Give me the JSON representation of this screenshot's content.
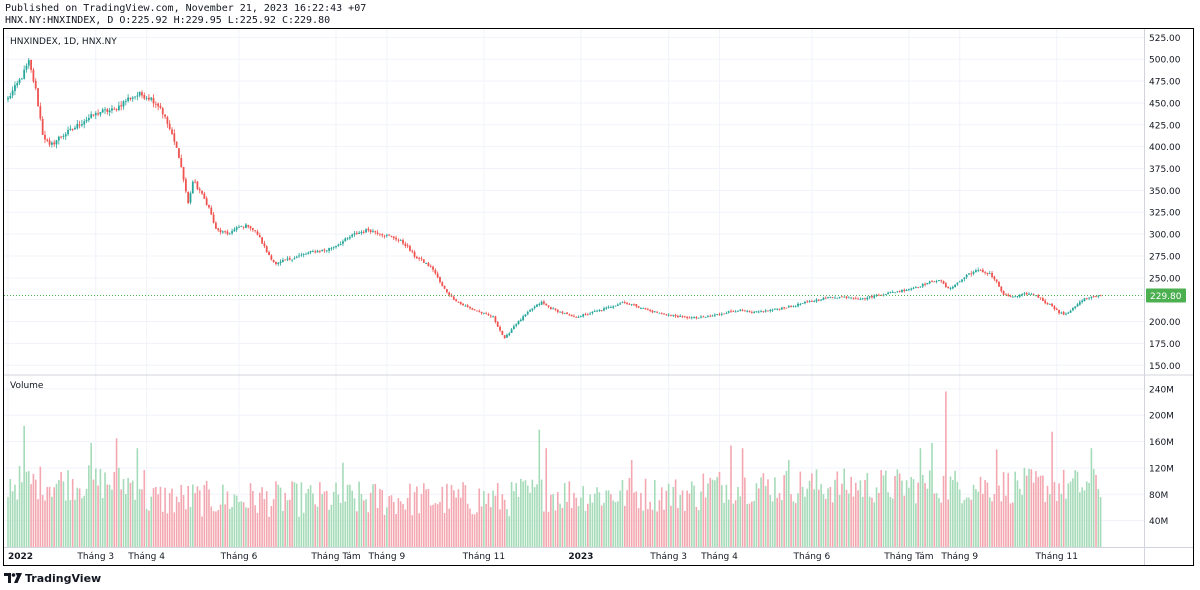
{
  "header": {
    "published": "Published on TradingView.com, November 21, 2023 16:22:43 +07",
    "ohlc": "HNX.NY:HNXINDEX, D O:225.92 H:229.95 L:225.92 C:229.80"
  },
  "footer": {
    "brand": "TradingView",
    "logo_icon": "tradingview-logo-icon"
  },
  "colors": {
    "up": "#26a69a",
    "down": "#ef5350",
    "up_vol": "#a5dbb8",
    "down_vol": "#f3a7b0",
    "grid": "#f0f3fa",
    "last_price": "#4caf50"
  },
  "chart_data": {
    "type": "candlestick",
    "title": "HNXINDEX, 1D, HNX.NY",
    "symbol": "HNX.NY:HNXINDEX",
    "interval": "1D",
    "last_price": "229.80",
    "price_axis": {
      "ylim": [
        140,
        530
      ],
      "ticks": [
        525,
        500,
        475,
        450,
        425,
        400,
        375,
        350,
        325,
        300,
        275,
        250,
        225,
        200,
        175,
        150
      ],
      "tick_labels": [
        "525.00",
        "500.00",
        "475.00",
        "450.00",
        "425.00",
        "400.00",
        "375.00",
        "350.00",
        "325.00",
        "300.00",
        "275.00",
        "250.00",
        "225.00",
        "200.00",
        "175.00",
        "150.00"
      ]
    },
    "volume_axis": {
      "title": "Volume",
      "ylim": [
        0,
        255
      ],
      "ticks": [
        240,
        200,
        160,
        120,
        80,
        40
      ],
      "tick_labels": [
        "240M",
        "200M",
        "160M",
        "120M",
        "80M",
        "40M"
      ]
    },
    "time_axis": [
      {
        "label": "2022",
        "index": 0,
        "bold": true
      },
      {
        "label": "Tháng 3",
        "index": 38
      },
      {
        "label": "Tháng 4",
        "index": 60
      },
      {
        "label": "Tháng 6",
        "index": 100
      },
      {
        "label": "Tháng Tám",
        "index": 142
      },
      {
        "label": "Tháng 9",
        "index": 164
      },
      {
        "label": "Tháng 11",
        "index": 206
      },
      {
        "label": "2023",
        "index": 248,
        "bold": true
      },
      {
        "label": "Tháng 3",
        "index": 286
      },
      {
        "label": "Tháng 4",
        "index": 308
      },
      {
        "label": "Tháng 6",
        "index": 348
      },
      {
        "label": "Tháng Tám",
        "index": 390
      },
      {
        "label": "Tháng 9",
        "index": 412
      },
      {
        "label": "Tháng 11",
        "index": 454
      }
    ],
    "bars": 474,
    "close_keypoints": [
      [
        0,
        455
      ],
      [
        6,
        480
      ],
      [
        9,
        497
      ],
      [
        12,
        465
      ],
      [
        15,
        415
      ],
      [
        18,
        400
      ],
      [
        22,
        410
      ],
      [
        28,
        420
      ],
      [
        33,
        430
      ],
      [
        40,
        440
      ],
      [
        46,
        442
      ],
      [
        52,
        455
      ],
      [
        57,
        460
      ],
      [
        62,
        455
      ],
      [
        66,
        445
      ],
      [
        70,
        420
      ],
      [
        74,
        390
      ],
      [
        78,
        335
      ],
      [
        80,
        360
      ],
      [
        83,
        350
      ],
      [
        87,
        330
      ],
      [
        90,
        305
      ],
      [
        95,
        300
      ],
      [
        100,
        308
      ],
      [
        104,
        310
      ],
      [
        108,
        300
      ],
      [
        112,
        280
      ],
      [
        116,
        265
      ],
      [
        120,
        270
      ],
      [
        126,
        275
      ],
      [
        132,
        280
      ],
      [
        138,
        282
      ],
      [
        144,
        290
      ],
      [
        150,
        300
      ],
      [
        156,
        305
      ],
      [
        162,
        300
      ],
      [
        168,
        295
      ],
      [
        172,
        288
      ],
      [
        176,
        275
      ],
      [
        180,
        268
      ],
      [
        184,
        260
      ],
      [
        188,
        240
      ],
      [
        192,
        228
      ],
      [
        196,
        220
      ],
      [
        200,
        215
      ],
      [
        205,
        210
      ],
      [
        210,
        205
      ],
      [
        215,
        180
      ],
      [
        219,
        195
      ],
      [
        223,
        205
      ],
      [
        227,
        215
      ],
      [
        231,
        222
      ],
      [
        235,
        215
      ],
      [
        240,
        210
      ],
      [
        245,
        205
      ],
      [
        250,
        208
      ],
      [
        255,
        212
      ],
      [
        260,
        216
      ],
      [
        266,
        222
      ],
      [
        272,
        218
      ],
      [
        278,
        212
      ],
      [
        285,
        208
      ],
      [
        292,
        205
      ],
      [
        298,
        204
      ],
      [
        304,
        206
      ],
      [
        310,
        210
      ],
      [
        316,
        213
      ],
      [
        322,
        210
      ],
      [
        328,
        212
      ],
      [
        334,
        215
      ],
      [
        340,
        218
      ],
      [
        346,
        222
      ],
      [
        352,
        226
      ],
      [
        358,
        228
      ],
      [
        364,
        228
      ],
      [
        370,
        226
      ],
      [
        376,
        230
      ],
      [
        382,
        233
      ],
      [
        388,
        236
      ],
      [
        394,
        240
      ],
      [
        398,
        244
      ],
      [
        403,
        248
      ],
      [
        407,
        237
      ],
      [
        412,
        246
      ],
      [
        416,
        255
      ],
      [
        420,
        258
      ],
      [
        425,
        255
      ],
      [
        428,
        245
      ],
      [
        431,
        230
      ],
      [
        436,
        228
      ],
      [
        441,
        232
      ],
      [
        445,
        230
      ],
      [
        449,
        222
      ],
      [
        452,
        218
      ],
      [
        455,
        210
      ],
      [
        458,
        208
      ],
      [
        462,
        218
      ],
      [
        466,
        226
      ],
      [
        470,
        228
      ],
      [
        473,
        229.8
      ]
    ],
    "volume_spikes": [
      {
        "index": 7,
        "value": 184
      },
      {
        "index": 36,
        "value": 158
      },
      {
        "index": 47,
        "value": 165
      },
      {
        "index": 56,
        "value": 150
      },
      {
        "index": 145,
        "value": 128
      },
      {
        "index": 230,
        "value": 178
      },
      {
        "index": 233,
        "value": 150
      },
      {
        "index": 270,
        "value": 132
      },
      {
        "index": 313,
        "value": 154
      },
      {
        "index": 318,
        "value": 150
      },
      {
        "index": 338,
        "value": 132
      },
      {
        "index": 395,
        "value": 150
      },
      {
        "index": 400,
        "value": 158
      },
      {
        "index": 406,
        "value": 236
      },
      {
        "index": 428,
        "value": 148
      },
      {
        "index": 452,
        "value": 175
      },
      {
        "index": 469,
        "value": 150
      }
    ]
  }
}
